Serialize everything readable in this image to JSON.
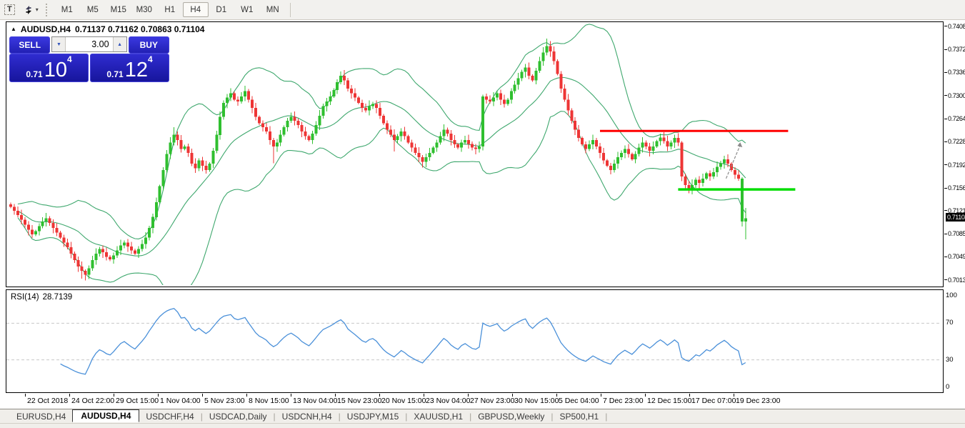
{
  "toolbar": {
    "text_tool": "T",
    "caret": "▾",
    "timeframes": [
      "M1",
      "M5",
      "M15",
      "M30",
      "H1",
      "H4",
      "D1",
      "W1",
      "MN"
    ],
    "active_timeframe": "H4"
  },
  "chart": {
    "title_symbol": "AUDUSD,H4",
    "title_ohlc": "0.71137 0.71162 0.70863 0.71104",
    "current_price": "0.71104"
  },
  "trade_panel": {
    "sell_label": "SELL",
    "buy_label": "BUY",
    "volume": "3.00",
    "down_arrow": "▼",
    "up_arrow": "▲",
    "bid_prefix": "0.71",
    "bid_big": "10",
    "bid_sup": "4",
    "ask_prefix": "0.71",
    "ask_big": "12",
    "ask_sup": "4"
  },
  "rsi": {
    "label": "RSI(14)",
    "value": "28.7139",
    "axis_labels": [
      "100",
      "70",
      "30",
      "0"
    ],
    "axis_values": [
      100,
      70,
      30,
      0
    ],
    "level_lines": [
      70,
      30
    ]
  },
  "tabs": {
    "items": [
      "EURUSD,H4",
      "AUDUSD,H4",
      "USDCHF,H4",
      "USDCAD,Daily",
      "USDCNH,H4",
      "USDJPY,M15",
      "XAUUSD,H1",
      "GBPUSD,Weekly",
      "SP500,H1"
    ],
    "active": "AUDUSD,H4",
    "separator": "|"
  },
  "colors": {
    "up": "#2fbf2f",
    "down": "#ee3535",
    "bollinger": "#3fa86e",
    "resistance": "#ff0000",
    "support": "#00dd00",
    "rsi_line": "#4a90d9",
    "rsi_level": "#c8c8c8",
    "trend_arrow": "#8a8a8a"
  },
  "chart_data": {
    "type": "candlestick",
    "symbol": "AUDUSD",
    "timeframe": "H4",
    "title": "AUDUSD,H4",
    "price_range": [
      0.7006,
      0.74155
    ],
    "y_tick_labels": [
      "0.74080",
      "0.73720",
      "0.73360",
      "0.73000",
      "0.72640",
      "0.72280",
      "0.71920",
      "0.71560",
      "0.71210",
      "0.70850",
      "0.70490",
      "0.70130"
    ],
    "y_tick_values": [
      0.7408,
      0.7372,
      0.7336,
      0.73,
      0.7264,
      0.7228,
      0.7192,
      0.7156,
      0.7121,
      0.7085,
      0.7049,
      0.7013
    ],
    "x_labels": [
      "22 Oct 2018",
      "24 Oct 22:00",
      "29 Oct 15:00",
      "1 Nov 04:00",
      "5 Nov 23:00",
      "8 Nov 15:00",
      "13 Nov 04:00",
      "15 Nov 23:00",
      "20 Nov 15:00",
      "23 Nov 04:00",
      "27 Nov 23:00",
      "30 Nov 15:00",
      "5 Dec 04:00",
      "7 Dec 23:00",
      "12 Dec 15:00",
      "17 Dec 07:00",
      "19 Dec 23:00"
    ],
    "closes_x10000": [
      7128,
      7122,
      7115,
      7108,
      7100,
      7092,
      7085,
      7090,
      7098,
      7105,
      7110,
      7103,
      7095,
      7088,
      7080,
      7072,
      7065,
      7055,
      7045,
      7035,
      7028,
      7022,
      7032,
      7045,
      7055,
      7062,
      7057,
      7050,
      7046,
      7052,
      7060,
      7068,
      7072,
      7066,
      7060,
      7055,
      7062,
      7070,
      7080,
      7095,
      7112,
      7135,
      7160,
      7185,
      7210,
      7228,
      7240,
      7232,
      7218,
      7222,
      7212,
      7195,
      7188,
      7200,
      7192,
      7185,
      7195,
      7215,
      7240,
      7268,
      7290,
      7298,
      7305,
      7295,
      7292,
      7300,
      7308,
      7295,
      7282,
      7268,
      7258,
      7252,
      7245,
      7232,
      7222,
      7228,
      7240,
      7252,
      7262,
      7268,
      7262,
      7255,
      7245,
      7238,
      7232,
      7242,
      7255,
      7270,
      7285,
      7292,
      7300,
      7310,
      7322,
      7332,
      7325,
      7312,
      7305,
      7298,
      7290,
      7282,
      7278,
      7285,
      7288,
      7282,
      7270,
      7258,
      7248,
      7240,
      7232,
      7238,
      7245,
      7238,
      7228,
      7220,
      7212,
      7205,
      7198,
      7205,
      7212,
      7220,
      7228,
      7238,
      7248,
      7242,
      7232,
      7225,
      7220,
      7228,
      7232,
      7226,
      7220,
      7218,
      7222,
      7300,
      7295,
      7292,
      7298,
      7305,
      7295,
      7288,
      7295,
      7308,
      7318,
      7328,
      7338,
      7345,
      7332,
      7325,
      7340,
      7355,
      7368,
      7378,
      7370,
      7355,
      7335,
      7312,
      7295,
      7278,
      7262,
      7248,
      7235,
      7225,
      7218,
      7225,
      7232,
      7222,
      7212,
      7200,
      7192,
      7185,
      7195,
      7205,
      7212,
      7218,
      7210,
      7202,
      7210,
      7220,
      7228,
      7222,
      7215,
      7222,
      7230,
      7236,
      7230,
      7222,
      7228,
      7235,
      7228,
      7175,
      7162,
      7155,
      7162,
      7170,
      7165,
      7172,
      7180,
      7175,
      7182,
      7190,
      7196,
      7202,
      7195,
      7185,
      7178,
      7172,
      7105,
      7110
    ],
    "wick_overrides": {
      "20": {
        "l": 0.7016
      },
      "21": {
        "l": 0.7013
      },
      "46": {
        "h": 0.7252
      },
      "74": {
        "l": 0.7196
      },
      "94": {
        "h": 0.7341
      },
      "108": {
        "l": 0.7214
      },
      "116": {
        "l": 0.7189
      },
      "133": {
        "l": 0.7216
      },
      "151": {
        "h": 0.739
      },
      "152": {
        "h": 0.7386
      },
      "183": {
        "h": 0.7242
      },
      "184": {
        "h": 0.7244
      },
      "189": {
        "l": 0.7168
      },
      "191": {
        "l": 0.7149
      },
      "206": {
        "h": 0.7174
      },
      "207": {
        "l": 0.7077,
        "h": 0.7126
      }
    },
    "color_overrides": {
      "206": "up"
    },
    "indicators": {
      "bollinger": {
        "period": 20,
        "deviation": 2
      },
      "rsi": {
        "period": 14,
        "last_value": 28.7139
      }
    },
    "overlays": {
      "resistance_line": {
        "price": 0.7246,
        "from_bar": 166,
        "to_bar": 219
      },
      "support_line": {
        "price": 0.7155,
        "from_bar": 188,
        "to_bar": 221
      },
      "trend_arrow": {
        "from_bar": 201.5,
        "from_price": 0.7172,
        "to_bar": 205.5,
        "to_price": 0.7224
      }
    },
    "current_price": 0.71104,
    "legend": "RSI(14) 28.7139"
  }
}
